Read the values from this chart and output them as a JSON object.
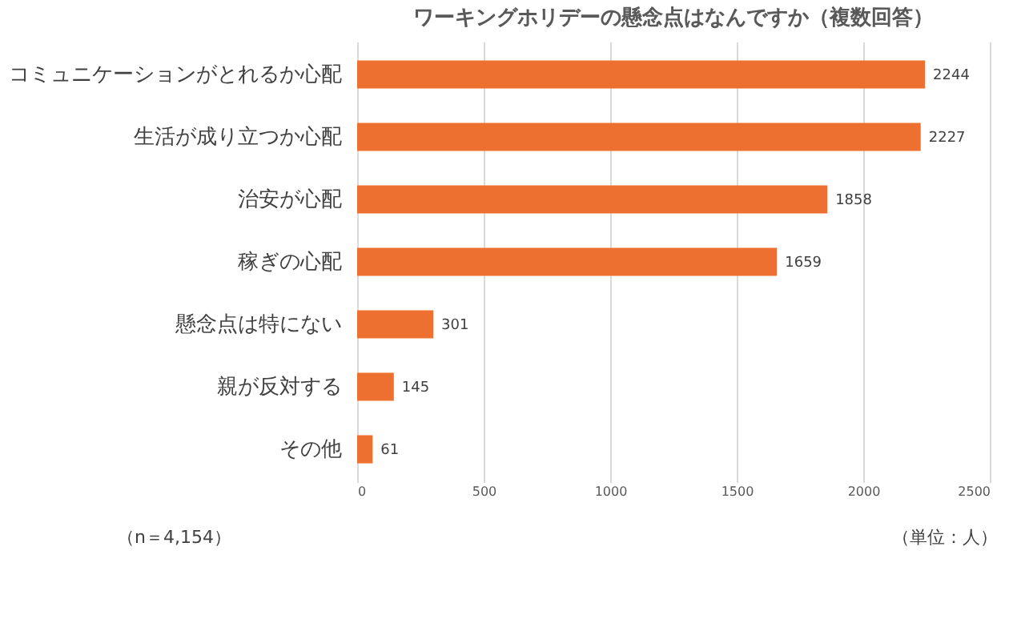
{
  "chart_data": {
    "type": "bar",
    "orientation": "horizontal",
    "title": "ワーキングホリデーの懸念点はなんですか（複数回答）",
    "categories": [
      "コミュニケーションがとれるか心配",
      "生活が成り立つか心配",
      "治安が心配",
      "稼ぎの心配",
      "懸念点は特にない",
      "親が反対する",
      "その他"
    ],
    "values": [
      2244,
      2227,
      1858,
      1659,
      301,
      145,
      61
    ],
    "color": "#ed7031",
    "xlim": [
      0,
      2500
    ],
    "xticks": [
      0,
      500,
      1000,
      1500,
      2000,
      2500
    ],
    "grid": "x",
    "data_labels": true,
    "annotations": [
      "（n＝4,154）",
      "（単位：人）"
    ]
  }
}
